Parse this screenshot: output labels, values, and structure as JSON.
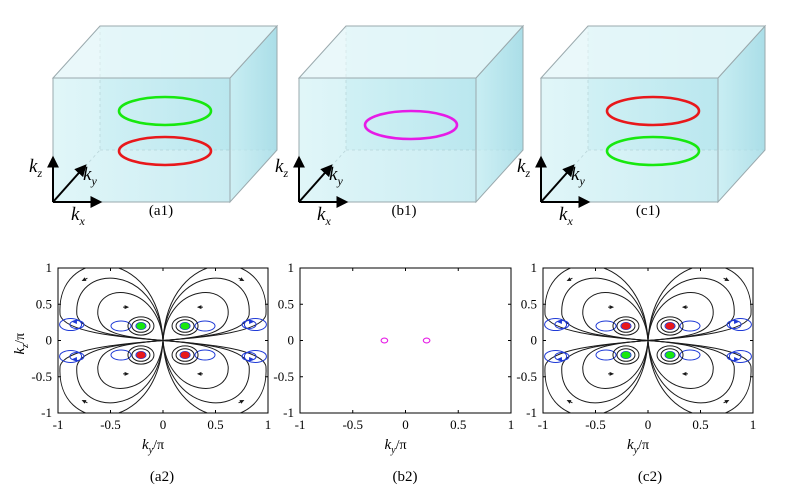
{
  "colors": {
    "ring_green": "#17e80f",
    "ring_red": "#e8181b",
    "ring_magenta": "#e61be6",
    "stream_black": "#1a1a1a",
    "stream_blue": "#1f3ad6",
    "box_fill": "#bfe9ef"
  },
  "top_panels": [
    {
      "label": "(a1)",
      "rings": [
        "green",
        "red"
      ]
    },
    {
      "label": "(b1)",
      "rings": [
        "magenta"
      ]
    },
    {
      "label": "(c1)",
      "rings": [
        "red",
        "green"
      ]
    }
  ],
  "axes_labels": {
    "kx": "k",
    "kx_sub": "x",
    "ky": "k",
    "ky_sub": "y",
    "kz": "k",
    "kz_sub": "z"
  },
  "bottom_panels": [
    {
      "label": "(a2)",
      "xlabel": "k",
      "xlabel_sub": "y",
      "xlabel_tail": "/π",
      "ylabel": "k",
      "ylabel_sub": "z",
      "ylabel_tail": "/π"
    },
    {
      "label": "(b2)",
      "xlabel": "k",
      "xlabel_sub": "y",
      "xlabel_tail": "/π"
    },
    {
      "label": "(c2)",
      "xlabel": "k",
      "xlabel_sub": "y",
      "xlabel_tail": "/π"
    }
  ],
  "chart_data": [
    {
      "type": "scatter",
      "panel": "(a2)",
      "xlim": [
        -1,
        1
      ],
      "ylim": [
        -1,
        1
      ],
      "xticks": [
        "-1",
        "-0.5",
        "0",
        "0.5",
        "1"
      ],
      "yticks": [
        "-1",
        "-0.5",
        "0",
        "0.5",
        "1"
      ],
      "series": [
        {
          "values": [
            {
              "x": -0.21,
              "y": 0.2
            },
            {
              "x": 0.21,
              "y": 0.2
            }
          ]
        },
        {
          "values": [
            {
              "x": -0.21,
              "y": -0.2
            },
            {
              "x": 0.21,
              "y": -0.2
            }
          ]
        }
      ]
    },
    {
      "type": "scatter",
      "panel": "(b2)",
      "xlim": [
        -1,
        1
      ],
      "ylim": [
        -1,
        1
      ],
      "xticks": [
        "-1",
        "-0.5",
        "0",
        "0.5",
        "1"
      ],
      "yticks": [
        "-1",
        "-0.5",
        "0",
        "0.5",
        "1"
      ],
      "series": [
        {
          "values": [
            {
              "x": -0.2,
              "y": 0.0
            },
            {
              "x": 0.2,
              "y": 0.0
            }
          ]
        }
      ]
    },
    {
      "type": "scatter",
      "panel": "(c2)",
      "xlim": [
        -1,
        1
      ],
      "ylim": [
        -1,
        1
      ],
      "xticks": [
        "-1",
        "-0.5",
        "0",
        "0.5",
        "1"
      ],
      "yticks": [
        "-1",
        "-0.5",
        "0",
        "0.5",
        "1"
      ],
      "series": [
        {
          "values": [
            {
              "x": -0.21,
              "y": 0.2
            },
            {
              "x": 0.21,
              "y": 0.2
            }
          ]
        },
        {
          "values": [
            {
              "x": -0.21,
              "y": -0.2
            },
            {
              "x": 0.21,
              "y": -0.2
            }
          ]
        }
      ]
    }
  ]
}
